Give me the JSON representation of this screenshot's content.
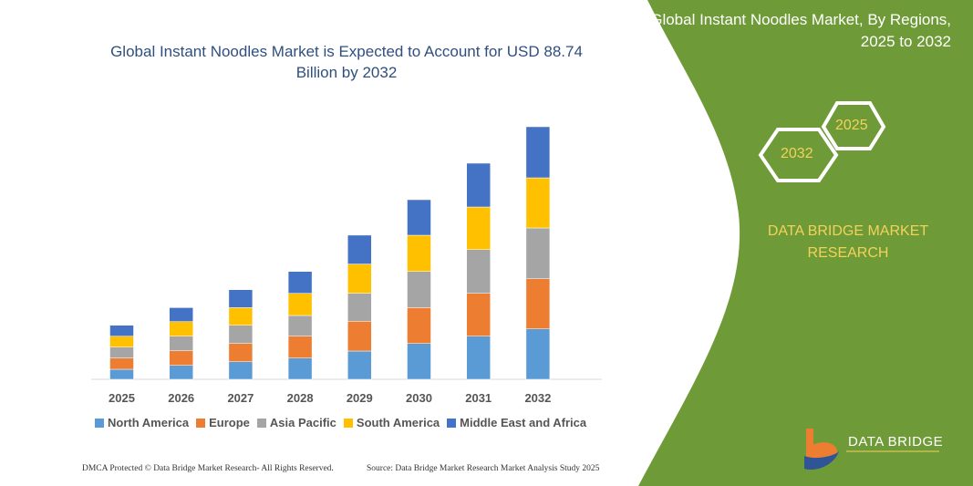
{
  "header": {
    "title": "Global Instant Noodles Market is Expected to Account for USD 88.74 Billion by 2032"
  },
  "side_panel": {
    "title": "Global Instant Noodles Market, By Regions, 2025 to 2032",
    "hex_years": [
      "2025",
      "2032"
    ],
    "brand": "DATA BRIDGE MARKET RESEARCH",
    "logo_text": "DATA BRIDGE",
    "color": "#6f9a38"
  },
  "footer": {
    "left": "DMCA Protected © Data Bridge Market Research- All Rights Reserved.",
    "right": "Source: Data Bridge Market Research  Market Analysis Study 2025"
  },
  "chart_data": {
    "type": "bar",
    "stacked": true,
    "categories": [
      "2025",
      "2026",
      "2027",
      "2028",
      "2029",
      "2030",
      "2031",
      "2032"
    ],
    "legend_position": "bottom",
    "grid": false,
    "series": [
      {
        "name": "North America",
        "color": "#5b9bd5",
        "values": [
          11,
          15.3,
          19.3,
          23.3,
          31,
          39.3,
          47.3,
          55.3
        ]
      },
      {
        "name": "Europe",
        "color": "#ed7d31",
        "values": [
          12.3,
          16,
          20,
          24,
          32.7,
          39.3,
          47,
          55
        ]
      },
      {
        "name": "Asia Pacific",
        "color": "#a5a5a5",
        "values": [
          12,
          16,
          20,
          22.7,
          30.7,
          39.7,
          48,
          55.7
        ]
      },
      {
        "name": "South America",
        "color": "#ffc000",
        "values": [
          12,
          16,
          19.3,
          24.3,
          32,
          39.7,
          46.7,
          55
        ]
      },
      {
        "name": "Middle East and Africa",
        "color": "#4472c4",
        "values": [
          12,
          15.3,
          19.7,
          24,
          31.7,
          39,
          48,
          56
        ]
      }
    ]
  }
}
